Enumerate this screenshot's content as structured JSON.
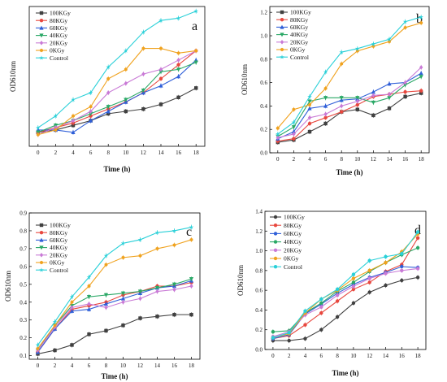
{
  "colors": {
    "100KGy": "#404040",
    "80KGy": "#e8483f",
    "60KGy": "#2f5fd8",
    "40KGy": "#2aa866",
    "20KGy": "#c97ad6",
    "0KGy": "#f0a21e",
    "Control": "#29d0d8"
  },
  "chart_data": [
    {
      "type": "line",
      "panel": "a",
      "xlabel": "Time (h)",
      "ylabel": "OD610nm",
      "xlim": [
        -1,
        19
      ],
      "ylim": [
        0.05,
        0.65
      ],
      "x": [
        0,
        2,
        4,
        6,
        8,
        10,
        12,
        14,
        16,
        18
      ],
      "xticks": [
        0,
        2,
        4,
        6,
        8,
        10,
        12,
        14,
        16,
        18
      ],
      "yticks": [],
      "legend_position": "top-left",
      "series": [
        {
          "name": "100KGy",
          "marker": "square",
          "values": [
            0.11,
            0.12,
            0.14,
            0.16,
            0.19,
            0.2,
            0.21,
            0.23,
            0.26,
            0.3
          ]
        },
        {
          "name": "80KGy",
          "marker": "circle",
          "values": [
            0.11,
            0.13,
            0.15,
            0.18,
            0.21,
            0.24,
            0.28,
            0.34,
            0.4,
            0.46
          ]
        },
        {
          "name": "60KGy",
          "marker": "triangle",
          "values": [
            0.12,
            0.12,
            0.11,
            0.16,
            0.2,
            0.24,
            0.28,
            0.31,
            0.35,
            0.42
          ]
        },
        {
          "name": "40KGy",
          "marker": "triangle-down",
          "values": [
            0.11,
            0.14,
            0.16,
            0.19,
            0.22,
            0.25,
            0.29,
            0.37,
            0.38,
            0.41
          ]
        },
        {
          "name": "20KGy",
          "marker": "diamond",
          "values": [
            0.1,
            0.13,
            0.16,
            0.2,
            0.28,
            0.32,
            0.36,
            0.38,
            0.42,
            0.46
          ]
        },
        {
          "name": "0KGy",
          "marker": "hexagon",
          "values": [
            0.1,
            0.12,
            0.18,
            0.22,
            0.34,
            0.38,
            0.47,
            0.47,
            0.45,
            0.46
          ]
        },
        {
          "name": "Control",
          "marker": "star",
          "values": [
            0.13,
            0.18,
            0.25,
            0.28,
            0.39,
            0.46,
            0.54,
            0.59,
            0.6,
            0.63
          ]
        }
      ]
    },
    {
      "type": "line",
      "panel": "b",
      "xlabel": "Time (h)",
      "ylabel": "OD610nm",
      "xlim": [
        -1,
        19
      ],
      "ylim": [
        0.0,
        1.25
      ],
      "x": [
        0,
        2,
        4,
        6,
        8,
        10,
        12,
        14,
        16,
        18
      ],
      "xticks": [
        0,
        2,
        4,
        6,
        8,
        10,
        12,
        14,
        16,
        18
      ],
      "yticks": [
        "0.0",
        "0.2",
        "0.4",
        "0.6",
        "0.8",
        "1.0",
        "1.2"
      ],
      "legend_position": "top-left",
      "series": [
        {
          "name": "100KGy",
          "marker": "square",
          "values": [
            0.09,
            0.11,
            0.18,
            0.25,
            0.35,
            0.37,
            0.32,
            0.38,
            0.48,
            0.51
          ]
        },
        {
          "name": "80KGy",
          "marker": "circle",
          "values": [
            0.1,
            0.12,
            0.25,
            0.3,
            0.35,
            0.41,
            0.48,
            0.5,
            0.52,
            0.53
          ]
        },
        {
          "name": "60KGy",
          "marker": "triangle",
          "values": [
            0.12,
            0.18,
            0.38,
            0.4,
            0.45,
            0.46,
            0.52,
            0.59,
            0.6,
            0.68
          ]
        },
        {
          "name": "40KGy",
          "marker": "triangle-down",
          "values": [
            0.14,
            0.22,
            0.44,
            0.47,
            0.47,
            0.47,
            0.43,
            0.47,
            0.58,
            0.65
          ]
        },
        {
          "name": "20KGy",
          "marker": "diamond",
          "values": [
            0.13,
            0.16,
            0.3,
            0.33,
            0.4,
            0.44,
            0.49,
            0.5,
            0.6,
            0.73
          ]
        },
        {
          "name": "0KGy",
          "marker": "hexagon",
          "values": [
            0.21,
            0.37,
            0.41,
            0.55,
            0.76,
            0.87,
            0.91,
            0.95,
            1.07,
            1.11
          ]
        },
        {
          "name": "Control",
          "marker": "star",
          "values": [
            0.16,
            0.26,
            0.48,
            0.69,
            0.86,
            0.89,
            0.93,
            0.97,
            1.12,
            1.16
          ]
        }
      ]
    },
    {
      "type": "line",
      "panel": "c",
      "xlabel": "Time (h)",
      "ylabel": "OD610nm",
      "xlim": [
        -1,
        19
      ],
      "ylim": [
        0.08,
        0.9
      ],
      "x": [
        0,
        2,
        4,
        6,
        8,
        10,
        12,
        14,
        16,
        18
      ],
      "xticks": [
        0,
        2,
        4,
        6,
        8,
        10,
        12,
        14,
        16,
        18
      ],
      "yticks": [
        "0.1",
        "0.2",
        "0.3",
        "0.4",
        "0.5",
        "0.6",
        "0.7",
        "0.8",
        "0.9"
      ],
      "legend_position": "top-left",
      "series": [
        {
          "name": "100KGy",
          "marker": "square",
          "values": [
            0.11,
            0.13,
            0.16,
            0.22,
            0.24,
            0.27,
            0.31,
            0.32,
            0.33,
            0.33
          ]
        },
        {
          "name": "80KGy",
          "marker": "circle",
          "values": [
            0.12,
            0.25,
            0.36,
            0.38,
            0.4,
            0.44,
            0.46,
            0.49,
            0.49,
            0.51
          ]
        },
        {
          "name": "60KGy",
          "marker": "triangle",
          "values": [
            0.12,
            0.25,
            0.35,
            0.36,
            0.39,
            0.42,
            0.45,
            0.48,
            0.49,
            0.52
          ]
        },
        {
          "name": "40KGy",
          "marker": "triangle-down",
          "values": [
            0.13,
            0.27,
            0.38,
            0.43,
            0.44,
            0.45,
            0.46,
            0.48,
            0.5,
            0.53
          ]
        },
        {
          "name": "20KGy",
          "marker": "diamond",
          "values": [
            0.13,
            0.26,
            0.37,
            0.39,
            0.37,
            0.4,
            0.42,
            0.46,
            0.47,
            0.49
          ]
        },
        {
          "name": "0KGy",
          "marker": "hexagon",
          "values": [
            0.14,
            0.27,
            0.4,
            0.49,
            0.61,
            0.65,
            0.66,
            0.7,
            0.72,
            0.75
          ]
        },
        {
          "name": "Control",
          "marker": "star",
          "values": [
            0.16,
            0.29,
            0.43,
            0.54,
            0.66,
            0.73,
            0.75,
            0.79,
            0.8,
            0.82
          ]
        }
      ]
    },
    {
      "type": "line",
      "panel": "d",
      "xlabel": "Time (h)",
      "ylabel": "OD610nm",
      "xlim": [
        -1,
        19
      ],
      "ylim": [
        0.0,
        1.4
      ],
      "x": [
        0,
        2,
        4,
        6,
        8,
        10,
        12,
        14,
        16,
        18
      ],
      "xticks": [
        0,
        2,
        4,
        6,
        8,
        10,
        12,
        14,
        16,
        18
      ],
      "yticks": [
        "0.0",
        "0.2",
        "0.4",
        "0.6",
        "0.8",
        "1.0",
        "1.2",
        "1.4"
      ],
      "legend_position": "top-left",
      "series": [
        {
          "name": "100KGy",
          "marker": "circle",
          "values": [
            0.09,
            0.09,
            0.11,
            0.2,
            0.33,
            0.47,
            0.58,
            0.65,
            0.7,
            0.73
          ]
        },
        {
          "name": "80KGy",
          "marker": "circle",
          "values": [
            0.11,
            0.14,
            0.25,
            0.37,
            0.49,
            0.61,
            0.68,
            0.79,
            0.86,
            1.13
          ]
        },
        {
          "name": "60KGy",
          "marker": "circle",
          "values": [
            0.11,
            0.15,
            0.36,
            0.46,
            0.57,
            0.66,
            0.73,
            0.78,
            0.84,
            0.83
          ]
        },
        {
          "name": "40KGy",
          "marker": "circle",
          "values": [
            0.18,
            0.19,
            0.37,
            0.47,
            0.59,
            0.68,
            0.79,
            0.88,
            0.96,
            1.03
          ]
        },
        {
          "name": "20KGy",
          "marker": "circle",
          "values": [
            0.13,
            0.18,
            0.35,
            0.43,
            0.55,
            0.64,
            0.72,
            0.77,
            0.8,
            0.82
          ]
        },
        {
          "name": "0KGy",
          "marker": "circle",
          "values": [
            0.12,
            0.16,
            0.37,
            0.51,
            0.6,
            0.72,
            0.8,
            0.88,
            0.99,
            1.17
          ]
        },
        {
          "name": "Control",
          "marker": "circle",
          "values": [
            0.12,
            0.17,
            0.39,
            0.51,
            0.61,
            0.76,
            0.9,
            0.94,
            0.97,
            1.19
          ]
        }
      ]
    }
  ]
}
